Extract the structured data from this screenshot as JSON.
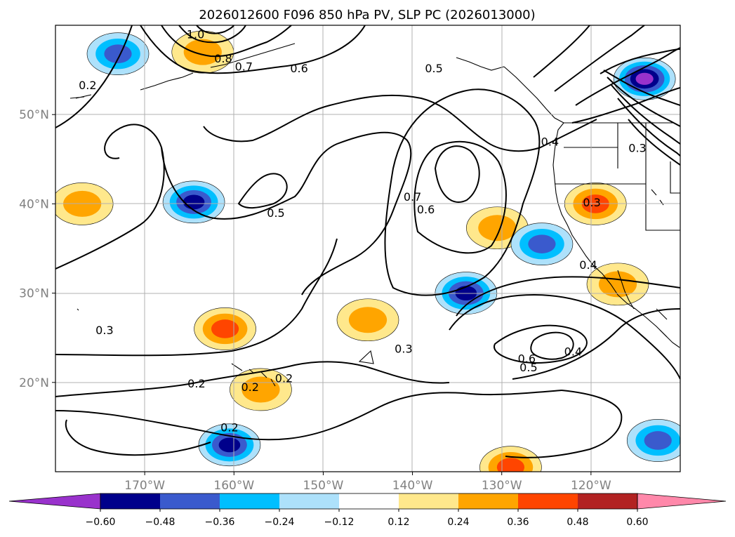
{
  "chart_data": {
    "type": "map",
    "title": "2026012600 F096 850 hPa PV, SLP PC (2026013000)",
    "lon_range": [
      -180,
      -110
    ],
    "lat_range": [
      10,
      60
    ],
    "lon_ticks": [
      {
        "value": -170,
        "label": "170°W"
      },
      {
        "value": -160,
        "label": "160°W"
      },
      {
        "value": -150,
        "label": "150°W"
      },
      {
        "value": -140,
        "label": "140°W"
      },
      {
        "value": -130,
        "label": "130°W"
      },
      {
        "value": -120,
        "label": "120°W"
      }
    ],
    "lat_ticks": [
      {
        "value": 20,
        "label": "20°N"
      },
      {
        "value": 30,
        "label": "30°N"
      },
      {
        "value": 40,
        "label": "40°N"
      },
      {
        "value": 50,
        "label": "50°N"
      }
    ],
    "colorbar": {
      "extend": "both",
      "ticks": [
        "−0.60",
        "−0.48",
        "−0.36",
        "−0.24",
        "−0.12",
        "0.12",
        "0.24",
        "0.36",
        "0.48",
        "0.60"
      ],
      "colors": [
        "#9932CC",
        "#00008B",
        "#3A5ACD",
        "#00BFFF",
        "#ADE1FB",
        "#FFFFFF",
        "#FFE88C",
        "#FFA500",
        "#FF4500",
        "#B22222",
        "#FF88AA"
      ]
    },
    "shaded_anomalies": [
      {
        "lon": -164.5,
        "lat": 40.2,
        "value": -0.48
      },
      {
        "lon": -161.0,
        "lat": 26.0,
        "value": 0.36
      },
      {
        "lon": -157.0,
        "lat": 19.2,
        "value": 0.24
      },
      {
        "lon": -160.5,
        "lat": 13.0,
        "value": -0.48
      },
      {
        "lon": -145.0,
        "lat": 27.0,
        "value": 0.24
      },
      {
        "lon": -134.0,
        "lat": 30.0,
        "value": -0.48
      },
      {
        "lon": -130.5,
        "lat": 37.3,
        "value": 0.24
      },
      {
        "lon": -125.5,
        "lat": 35.5,
        "value": -0.36
      },
      {
        "lon": -119.5,
        "lat": 40.0,
        "value": 0.36
      },
      {
        "lon": -117.0,
        "lat": 31.0,
        "value": 0.24
      },
      {
        "lon": -114.0,
        "lat": 54.0,
        "value": -0.6
      },
      {
        "lon": -112.5,
        "lat": 13.5,
        "value": -0.36
      },
      {
        "lon": -177.0,
        "lat": 40.0,
        "value": 0.24
      },
      {
        "lon": -173.0,
        "lat": 56.8,
        "value": -0.36
      },
      {
        "lon": -163.5,
        "lat": 57.0,
        "value": 0.24
      },
      {
        "lon": -129.0,
        "lat": 10.5,
        "value": 0.36
      }
    ],
    "contour_labels": [
      {
        "lon": -164.3,
        "lat": 59.0,
        "text": "1.0"
      },
      {
        "lon": -161.2,
        "lat": 56.3,
        "text": "0.8"
      },
      {
        "lon": -158.9,
        "lat": 55.4,
        "text": "0.7"
      },
      {
        "lon": -152.7,
        "lat": 55.2,
        "text": "0.6"
      },
      {
        "lon": -137.6,
        "lat": 55.2,
        "text": "0.5"
      },
      {
        "lon": -176.4,
        "lat": 53.3,
        "text": "0.2"
      },
      {
        "lon": -155.3,
        "lat": 39.0,
        "text": "0.5"
      },
      {
        "lon": -140.0,
        "lat": 40.8,
        "text": "0.7"
      },
      {
        "lon": -138.5,
        "lat": 39.4,
        "text": "0.6"
      },
      {
        "lon": -124.6,
        "lat": 47.0,
        "text": "0.4"
      },
      {
        "lon": -119.9,
        "lat": 40.2,
        "text": "0.3"
      },
      {
        "lon": -120.3,
        "lat": 33.2,
        "text": "0.4"
      },
      {
        "lon": -114.8,
        "lat": 46.3,
        "text": "0.3"
      },
      {
        "lon": -174.5,
        "lat": 25.9,
        "text": "0.3"
      },
      {
        "lon": -164.2,
        "lat": 19.9,
        "text": "0.2"
      },
      {
        "lon": -158.2,
        "lat": 19.5,
        "text": "0.2"
      },
      {
        "lon": -154.4,
        "lat": 20.5,
        "text": "0.2"
      },
      {
        "lon": -160.5,
        "lat": 15.0,
        "text": "0.2"
      },
      {
        "lon": -141.0,
        "lat": 23.8,
        "text": "0.3"
      },
      {
        "lon": -127.2,
        "lat": 22.7,
        "text": "0.6"
      },
      {
        "lon": -127.0,
        "lat": 21.7,
        "text": "0.5"
      },
      {
        "lon": -122.0,
        "lat": 23.5,
        "text": "0.4"
      }
    ]
  }
}
